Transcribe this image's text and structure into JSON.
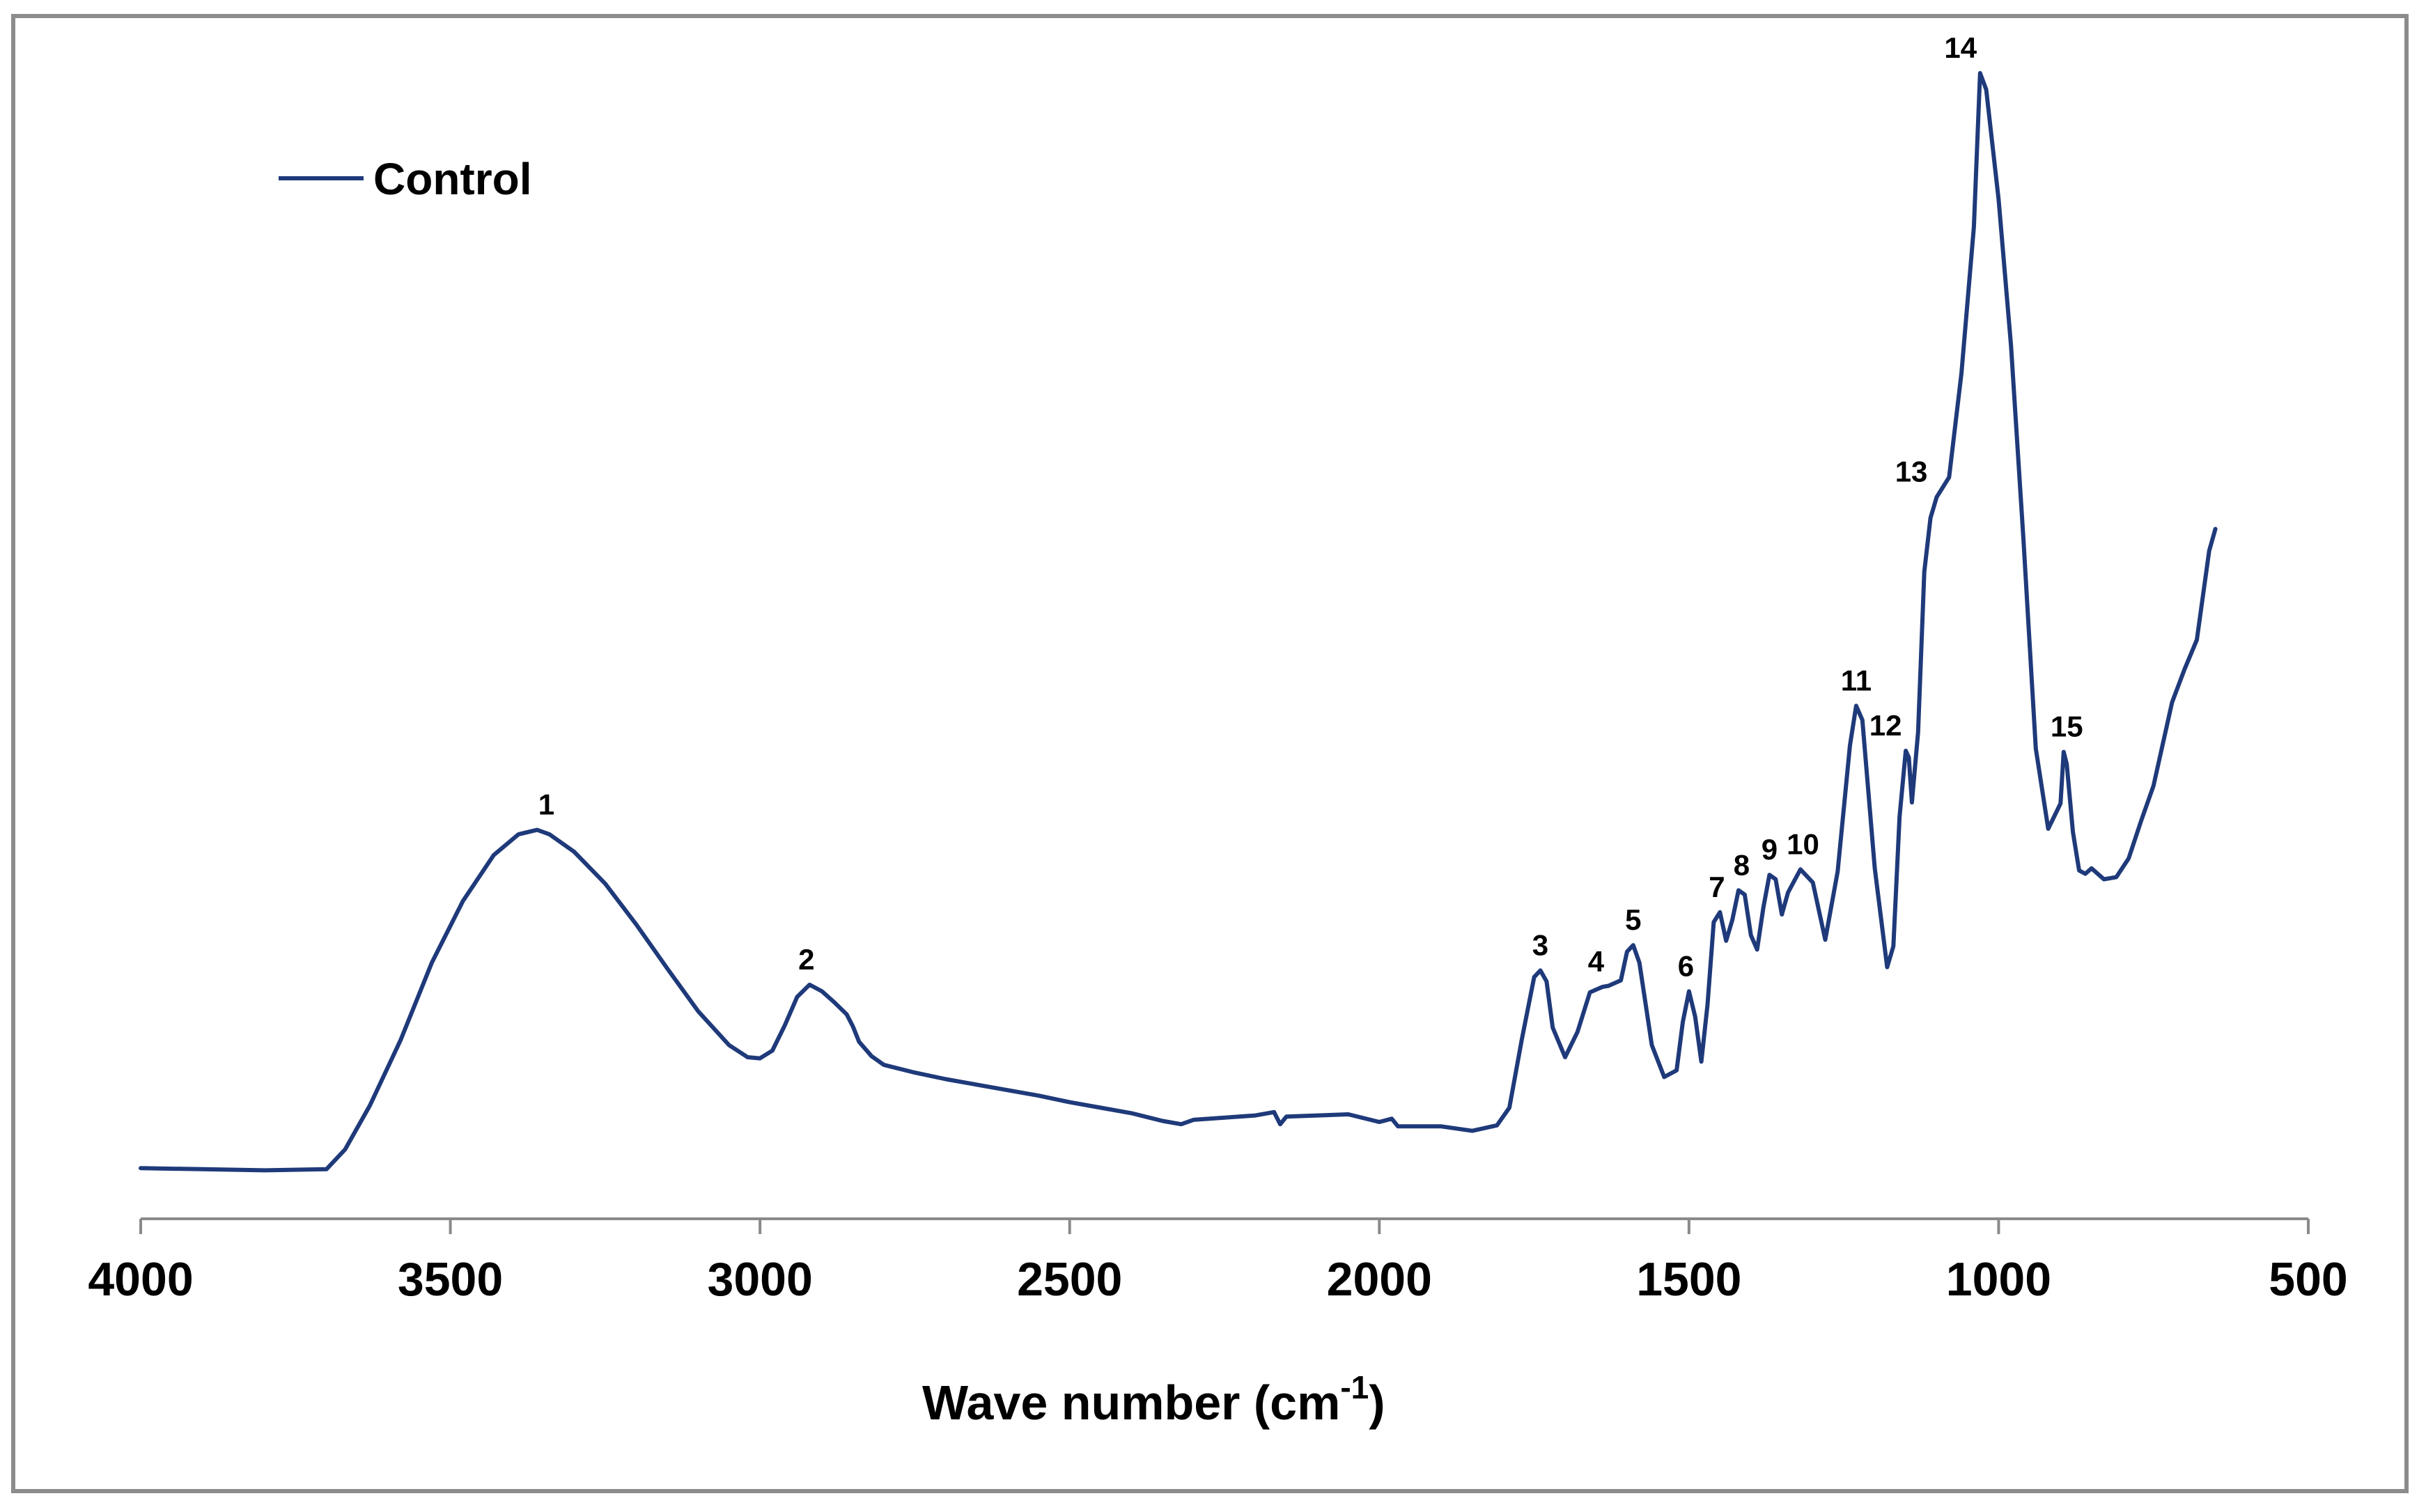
{
  "chart_data": {
    "type": "line",
    "title": "",
    "xlabel": "Wave number (cm",
    "xlabel_sup": "-1",
    "xlabel_end": ")",
    "ylabel": "",
    "xlim": [
      4000,
      500
    ],
    "ylim": [
      0,
      1
    ],
    "x_reversed": true,
    "grid": false,
    "legend_position": "top-left",
    "x_ticks": [
      4000,
      3500,
      3000,
      2500,
      2000,
      1500,
      1000,
      500
    ],
    "x_tick_labels": [
      "4000",
      "3500",
      "3000",
      "2500",
      "2000",
      "1500",
      "1000",
      "500"
    ],
    "colors": {
      "series": "#1f3a7a"
    },
    "series": [
      {
        "name": "Control",
        "x": [
          4000,
          3900,
          3800,
          3700,
          3670,
          3630,
          3580,
          3530,
          3480,
          3430,
          3390,
          3360,
          3340,
          3300,
          3250,
          3200,
          3150,
          3100,
          3050,
          3020,
          3000,
          2980,
          2960,
          2940,
          2920,
          2900,
          2880,
          2860,
          2850,
          2840,
          2820,
          2800,
          2750,
          2700,
          2650,
          2600,
          2550,
          2500,
          2450,
          2400,
          2350,
          2320,
          2300,
          2250,
          2200,
          2170,
          2160,
          2150,
          2100,
          2050,
          2000,
          1980,
          1970,
          1900,
          1850,
          1810,
          1790,
          1770,
          1750,
          1740,
          1730,
          1720,
          1700,
          1680,
          1660,
          1640,
          1630,
          1610,
          1600,
          1590,
          1580,
          1560,
          1540,
          1520,
          1510,
          1500,
          1490,
          1480,
          1470,
          1460,
          1450,
          1440,
          1430,
          1420,
          1410,
          1400,
          1390,
          1380,
          1370,
          1360,
          1350,
          1340,
          1320,
          1300,
          1280,
          1260,
          1240,
          1230,
          1220,
          1200,
          1180,
          1170,
          1160,
          1150,
          1145,
          1140,
          1130,
          1120,
          1110,
          1100,
          1080,
          1060,
          1040,
          1030,
          1020,
          1000,
          980,
          960,
          940,
          920,
          900,
          895,
          890,
          880,
          870,
          860,
          850,
          830,
          810,
          790,
          770,
          750,
          720,
          700,
          680,
          660,
          650
        ],
        "values": [
          0.003,
          0.002,
          0.001,
          0.002,
          0.02,
          0.06,
          0.12,
          0.19,
          0.246,
          0.288,
          0.307,
          0.311,
          0.307,
          0.291,
          0.262,
          0.225,
          0.185,
          0.146,
          0.115,
          0.104,
          0.103,
          0.11,
          0.133,
          0.159,
          0.17,
          0.164,
          0.154,
          0.143,
          0.132,
          0.118,
          0.105,
          0.097,
          0.09,
          0.084,
          0.079,
          0.074,
          0.069,
          0.063,
          0.058,
          0.053,
          0.046,
          0.043,
          0.047,
          0.049,
          0.051,
          0.054,
          0.043,
          0.05,
          0.051,
          0.052,
          0.045,
          0.048,
          0.041,
          0.041,
          0.037,
          0.042,
          0.058,
          0.12,
          0.177,
          0.183,
          0.173,
          0.131,
          0.104,
          0.127,
          0.163,
          0.168,
          0.169,
          0.174,
          0.2,
          0.206,
          0.19,
          0.115,
          0.086,
          0.092,
          0.136,
          0.164,
          0.141,
          0.1,
          0.152,
          0.227,
          0.236,
          0.21,
          0.229,
          0.256,
          0.252,
          0.215,
          0.202,
          0.24,
          0.27,
          0.266,
          0.234,
          0.254,
          0.275,
          0.263,
          0.211,
          0.273,
          0.388,
          0.424,
          0.411,
          0.276,
          0.186,
          0.205,
          0.323,
          0.383,
          0.377,
          0.336,
          0.4,
          0.546,
          0.595,
          0.614,
          0.632,
          0.727,
          0.86,
          1.0,
          0.985,
          0.885,
          0.752,
          0.576,
          0.385,
          0.312,
          0.335,
          0.382,
          0.371,
          0.309,
          0.274,
          0.271,
          0.276,
          0.266,
          0.268,
          0.285,
          0.319,
          0.351,
          0.427,
          0.457,
          0.484,
          0.565,
          0.585
        ]
      }
    ],
    "annotations": [
      {
        "label": "1",
        "x": 3345,
        "y": 0.311
      },
      {
        "label": "2",
        "x": 2925,
        "y": 0.17
      },
      {
        "label": "3",
        "x": 1740,
        "y": 0.183
      },
      {
        "label": "4",
        "x": 1650,
        "y": 0.168
      },
      {
        "label": "5",
        "x": 1590,
        "y": 0.206
      },
      {
        "label": "6",
        "x": 1505,
        "y": 0.164
      },
      {
        "label": "7",
        "x": 1455,
        "y": 0.236
      },
      {
        "label": "8",
        "x": 1415,
        "y": 0.256
      },
      {
        "label": "9",
        "x": 1370,
        "y": 0.27
      },
      {
        "label": "10",
        "x": 1325,
        "y": 0.275
      },
      {
        "label": "11",
        "x": 1230,
        "y": 0.424
      },
      {
        "label": "12",
        "x": 1160,
        "y": 0.383
      },
      {
        "label": "13",
        "x": 1105,
        "y": 0.614
      },
      {
        "label": "14",
        "x": 1030,
        "y": 1.0
      },
      {
        "label": "15",
        "x": 890,
        "y": 0.382
      }
    ]
  }
}
